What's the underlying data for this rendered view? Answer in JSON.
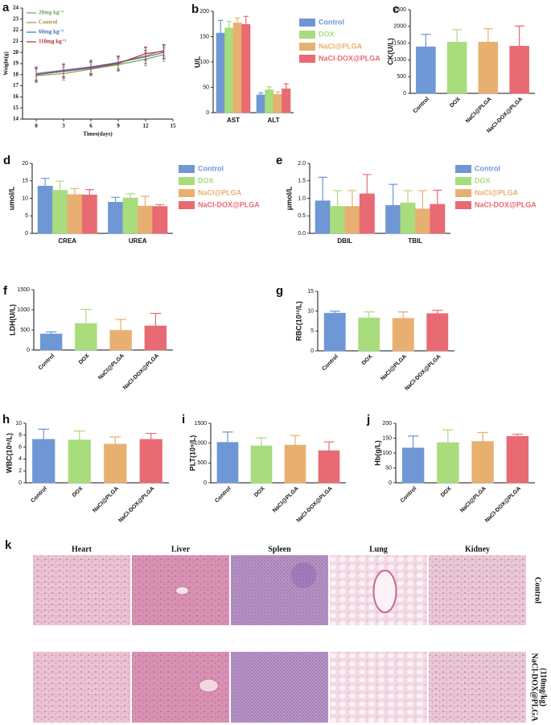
{
  "chart_data": [
    {
      "label": "a",
      "type": "line",
      "x_label": "Times(days)",
      "y_label": "Weight(g)",
      "x": [
        0,
        3,
        6,
        9,
        12,
        14
      ],
      "xlim": [
        -1.5,
        15
      ],
      "xticks": [
        0,
        3,
        6,
        9,
        12,
        15
      ],
      "ylim": [
        14,
        24
      ],
      "yticks": [
        14,
        15,
        16,
        17,
        18,
        19,
        20,
        21,
        22,
        23,
        24
      ],
      "series": [
        {
          "name": "20mg kg⁻¹",
          "color": "#6aa84f",
          "values": [
            17.9,
            18.1,
            18.5,
            18.9,
            19.4,
            19.8
          ],
          "errors": [
            0.6,
            0.6,
            0.6,
            0.6,
            0.6,
            0.6
          ]
        },
        {
          "name": "Control",
          "color": "#b8864a",
          "values": [
            18.0,
            18.3,
            18.6,
            19.1,
            19.7,
            20.2
          ],
          "errors": [
            0.6,
            0.6,
            0.6,
            0.6,
            0.7,
            0.5
          ]
        },
        {
          "name": "60mg kg⁻¹",
          "color": "#3d6fc4",
          "values": [
            18.1,
            18.4,
            18.7,
            19.1,
            19.6,
            20.0
          ],
          "errors": [
            0.6,
            0.6,
            0.6,
            0.6,
            0.6,
            0.6
          ]
        },
        {
          "name": "110mg kg⁻¹",
          "color": "#b03040",
          "values": [
            18.0,
            18.3,
            18.6,
            19.0,
            19.9,
            20.1
          ],
          "errors": [
            0.6,
            0.6,
            0.6,
            0.6,
            0.6,
            0.6
          ]
        }
      ]
    },
    {
      "label": "b",
      "type": "bar",
      "y_label": "U/L",
      "categories": [
        "AST",
        "ALT"
      ],
      "ylim": [
        0,
        200
      ],
      "yticks": [
        0,
        50,
        100,
        150,
        200
      ],
      "series": [
        {
          "name": "Control",
          "color": "#6f97d6",
          "values": [
            157,
            35
          ],
          "errors": [
            25,
            4
          ]
        },
        {
          "name": "DOX",
          "color": "#a8dc7c",
          "values": [
            167,
            45
          ],
          "errors": [
            13,
            6
          ]
        },
        {
          "name": "NaCl@PLGA",
          "color": "#e8b070",
          "values": [
            177,
            36
          ],
          "errors": [
            10,
            5
          ]
        },
        {
          "name": "NaCl-DOX@PLGA",
          "color": "#e86a72",
          "values": [
            174,
            47
          ],
          "errors": [
            16,
            10
          ]
        }
      ]
    },
    {
      "label": "c",
      "type": "bar",
      "y_label": "CK(U/L)",
      "categories": [
        "Control",
        "DOX",
        "NaCl@PLGA",
        "NaCl-DOX@PLGA"
      ],
      "colors": [
        "#6f97d6",
        "#a8dc7c",
        "#e8b070",
        "#e86a72"
      ],
      "values": [
        1390,
        1530,
        1530,
        1410
      ],
      "errors": [
        370,
        370,
        400,
        600
      ],
      "ylim": [
        0,
        2500
      ],
      "yticks": [
        0,
        500,
        1000,
        1500,
        2000,
        2500
      ]
    },
    {
      "label": "d",
      "type": "bar",
      "y_label": "umol/L",
      "categories": [
        "CREA",
        "UREA"
      ],
      "ylim": [
        0,
        20
      ],
      "yticks": [
        0,
        5,
        10,
        15,
        20
      ],
      "series": [
        {
          "name": "Control",
          "color": "#6f97d6",
          "values": [
            13.5,
            8.9
          ],
          "errors": [
            2.2,
            1.4
          ]
        },
        {
          "name": "DOX",
          "color": "#a8dc7c",
          "values": [
            12.3,
            10.1
          ],
          "errors": [
            2.6,
            1.2
          ]
        },
        {
          "name": "NaCl@PLGA",
          "color": "#e8b070",
          "values": [
            11.1,
            7.8
          ],
          "errors": [
            1.7,
            2.8
          ]
        },
        {
          "name": "NaCl-DOX@PLGA",
          "color": "#e86a72",
          "values": [
            11.0,
            7.7
          ],
          "errors": [
            1.5,
            0.5
          ]
        }
      ]
    },
    {
      "label": "e",
      "type": "bar",
      "y_label": "μmol/L",
      "categories": [
        "DBIL",
        "TBIL"
      ],
      "ylim": [
        0,
        2
      ],
      "yticks": [
        {
          "value": 0,
          "label": "0.0"
        },
        0.5,
        {
          "value": 1,
          "label": "1.0"
        },
        1.5,
        {
          "value": 2,
          "label": "2.0"
        }
      ],
      "series": [
        {
          "name": "Control",
          "color": "#6f97d6",
          "values": [
            0.93,
            0.8
          ],
          "errors": [
            0.67,
            0.6
          ]
        },
        {
          "name": "DOX",
          "color": "#a8dc7c",
          "values": [
            0.77,
            0.87
          ],
          "errors": [
            0.45,
            0.35
          ]
        },
        {
          "name": "NaCl@PLGA",
          "color": "#e8b070",
          "values": [
            0.77,
            0.7
          ],
          "errors": [
            0.45,
            0.52
          ]
        },
        {
          "name": "NaCl-DOX@PLGA",
          "color": "#e86a72",
          "values": [
            1.13,
            0.83
          ],
          "errors": [
            0.55,
            0.4
          ]
        }
      ]
    },
    {
      "label": "f",
      "type": "bar",
      "y_label": "LDH(U/L)",
      "categories": [
        "Control",
        "DOX",
        "NaCl@PLGA",
        "NaCl-DOX@PLGA"
      ],
      "colors": [
        "#6f97d6",
        "#a8dc7c",
        "#e8b070",
        "#e86a72"
      ],
      "values": [
        400,
        660,
        490,
        600
      ],
      "errors": [
        50,
        350,
        270,
        310
      ],
      "ylim": [
        0,
        1500
      ],
      "yticks": [
        0,
        500,
        1000,
        1500
      ]
    },
    {
      "label": "g",
      "type": "bar",
      "y_label": "RBC(10¹²/L)",
      "categories": [
        "Control",
        "DOX",
        "NaCl@PLGA",
        "NaCl-DOX@PLGA"
      ],
      "colors": [
        "#6f97d6",
        "#a8dc7c",
        "#e8b070",
        "#e86a72"
      ],
      "values": [
        9.5,
        8.3,
        8.2,
        9.4
      ],
      "errors": [
        0.5,
        1.5,
        1.6,
        0.8
      ],
      "ylim": [
        0,
        15
      ],
      "yticks": [
        0,
        5,
        10,
        15
      ]
    },
    {
      "label": "h",
      "type": "bar",
      "y_label": "WBC(10⁹/L)",
      "categories": [
        "Control",
        "DOX",
        "NaCl@PLGA",
        "NaCl-DOX@PLGA"
      ],
      "colors": [
        "#6f97d6",
        "#a8dc7c",
        "#e8b070",
        "#e86a72"
      ],
      "values": [
        7.3,
        7.2,
        6.5,
        7.3
      ],
      "errors": [
        1.7,
        1.5,
        1.2,
        1.0
      ],
      "ylim": [
        0,
        10
      ],
      "yticks": [
        0,
        2,
        4,
        6,
        8,
        10
      ]
    },
    {
      "label": "i",
      "type": "bar",
      "y_label": "PLT(10⁹/L)",
      "categories": [
        "Control",
        "DOX",
        "NaCl@PLGA",
        "NaCl-DOX@PLGA"
      ],
      "colors": [
        "#6f97d6",
        "#a8dc7c",
        "#e8b070",
        "#e86a72"
      ],
      "values": [
        1020,
        930,
        950,
        810
      ],
      "errors": [
        260,
        200,
        240,
        220
      ],
      "ylim": [
        0,
        1500
      ],
      "yticks": [
        0,
        500,
        1000,
        1500
      ]
    },
    {
      "label": "j",
      "type": "bar",
      "y_label": "Hb(g/L)",
      "categories": [
        "Control",
        "DOX",
        "NaCl@PLGA",
        "NaCl-DOX@PLGA"
      ],
      "colors": [
        "#6f97d6",
        "#a8dc7c",
        "#e8b070",
        "#e86a72"
      ],
      "values": [
        117,
        135,
        139,
        156
      ],
      "errors": [
        40,
        43,
        30,
        7
      ],
      "ylim": [
        0,
        200
      ],
      "yticks": [
        0,
        50,
        100,
        150,
        200
      ]
    }
  ],
  "histology": {
    "label": "k",
    "columns": [
      "Heart",
      "Liver",
      "Spleen",
      "Lung",
      "Kidney"
    ],
    "rows": [
      {
        "lines": [
          "Control"
        ]
      },
      {
        "lines": [
          "NaCl-DOX@PLGA",
          "(110mg/kg)"
        ]
      }
    ]
  }
}
